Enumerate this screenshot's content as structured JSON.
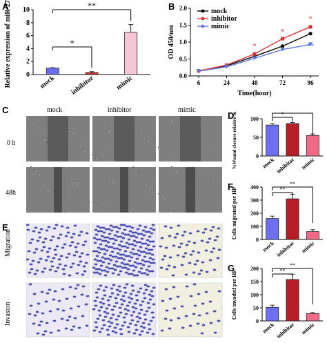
{
  "panels": {
    "A": {
      "label": "A",
      "ylabel": "Relative expression of miR-27b",
      "categories": [
        "mock",
        "inhibitor",
        "mimic"
      ],
      "values": [
        1.0,
        0.3,
        6.5
      ],
      "errors": [
        0.05,
        0.15,
        1.2
      ],
      "colors": [
        "#6b6ff0",
        "#d22a2a",
        "#f7c6d6"
      ],
      "ylim": [
        0,
        10
      ],
      "yticks": [
        0,
        2,
        4,
        6,
        8,
        10
      ],
      "sig": [
        {
          "from": 0,
          "to": 1,
          "text": "*"
        },
        {
          "from": 0,
          "to": 2,
          "text": "**"
        }
      ]
    },
    "B": {
      "label": "B",
      "ylabel": "OD 450/nm",
      "xlabel": "Time(hour)",
      "x": [
        "6",
        "24",
        "48",
        "72",
        "96"
      ],
      "ylim": [
        0,
        2.0
      ],
      "yticks": [
        "0.0",
        "0.5",
        "1.0",
        "1.5",
        "2.0"
      ],
      "series": [
        {
          "name": "mock",
          "color": "#000000",
          "values": [
            0.15,
            0.3,
            0.58,
            0.88,
            1.25
          ]
        },
        {
          "name": "inhibitor",
          "color": "#e03030",
          "values": [
            0.15,
            0.32,
            0.65,
            1.1,
            1.45
          ]
        },
        {
          "name": "mimic",
          "color": "#5a78e0",
          "values": [
            0.14,
            0.27,
            0.52,
            0.78,
            0.93
          ]
        }
      ],
      "stars": [
        {
          "xi": 2,
          "y": 0.82,
          "text": "*"
        },
        {
          "xi": 3,
          "y": 1.25,
          "text": "*"
        },
        {
          "xi": 4,
          "y": 1.62,
          "text": "*"
        },
        {
          "xi": 3,
          "y": 0.68,
          "text": "*"
        },
        {
          "xi": 4,
          "y": 0.82,
          "text": "**"
        }
      ]
    },
    "C": {
      "label": "C",
      "cols": [
        "mock",
        "inhibitor",
        "mimic"
      ],
      "rows": [
        "0 h",
        "48h"
      ]
    },
    "D": {
      "label": "D",
      "ylabel": "%Wound closure relative to 0h",
      "categories": [
        "mock",
        "inhibitor",
        "mimic"
      ],
      "values": [
        83,
        87,
        55
      ],
      "errors": [
        4,
        3,
        4
      ],
      "colors": [
        "#6b6ff0",
        "#b81e2a",
        "#f06a86"
      ],
      "ylim": [
        0,
        100
      ],
      "yticks": [
        0,
        50,
        100
      ],
      "sig": [
        {
          "from": 0,
          "to": 1,
          "text": "*"
        },
        {
          "from": 0,
          "to": 2,
          "text": "**"
        }
      ]
    },
    "E": {
      "label": "E",
      "rows": [
        "Migration",
        "Invasion"
      ]
    },
    "F": {
      "label": "F",
      "ylabel": "Cells migrated per HP",
      "categories": [
        "mock",
        "inhibitor",
        "mimic"
      ],
      "values": [
        160,
        310,
        60
      ],
      "errors": [
        18,
        35,
        15
      ],
      "colors": [
        "#6b6ff0",
        "#b81e2a",
        "#f06a86"
      ],
      "ylim": [
        0,
        400
      ],
      "yticks": [
        0,
        100,
        200,
        300,
        400
      ],
      "sig": [
        {
          "from": 0,
          "to": 1,
          "text": "**"
        },
        {
          "from": 0,
          "to": 2,
          "text": "**"
        }
      ]
    },
    "G": {
      "label": "G",
      "ylabel": "Cells invaded per HP",
      "categories": [
        "mock",
        "inhibitor",
        "mimic"
      ],
      "values": [
        52,
        158,
        28
      ],
      "errors": [
        8,
        20,
        4
      ],
      "colors": [
        "#6b6ff0",
        "#b81e2a",
        "#f06a86"
      ],
      "ylim": [
        0,
        200
      ],
      "yticks": [
        0,
        50,
        100,
        150,
        200
      ],
      "sig": [
        {
          "from": 0,
          "to": 1,
          "text": "**"
        },
        {
          "from": 0,
          "to": 2,
          "text": "**"
        }
      ]
    }
  },
  "chart_data": [
    {
      "type": "bar",
      "categories": [
        "mock",
        "inhibitor",
        "mimic"
      ],
      "values": [
        1.0,
        0.3,
        6.5
      ],
      "ylabel": "Relative expression of miR-27b",
      "ylim": [
        0,
        10
      ]
    },
    {
      "type": "line",
      "x": [
        6,
        24,
        48,
        72,
        96
      ],
      "xlabel": "Time(hour)",
      "ylabel": "OD 450/nm",
      "ylim": [
        0,
        2.0
      ],
      "series": [
        {
          "name": "mock",
          "values": [
            0.15,
            0.3,
            0.58,
            0.88,
            1.25
          ]
        },
        {
          "name": "inhibitor",
          "values": [
            0.15,
            0.32,
            0.65,
            1.1,
            1.45
          ]
        },
        {
          "name": "mimic",
          "values": [
            0.14,
            0.27,
            0.52,
            0.78,
            0.93
          ]
        }
      ],
      "legend": "top-left"
    },
    {
      "type": "bar",
      "categories": [
        "mock",
        "inhibitor",
        "mimic"
      ],
      "values": [
        83,
        87,
        55
      ],
      "ylabel": "%Wound closure relative to 0h",
      "ylim": [
        0,
        100
      ]
    },
    {
      "type": "bar",
      "categories": [
        "mock",
        "inhibitor",
        "mimic"
      ],
      "values": [
        160,
        310,
        60
      ],
      "ylabel": "Cells migrated per HP",
      "ylim": [
        0,
        400
      ]
    },
    {
      "type": "bar",
      "categories": [
        "mock",
        "inhibitor",
        "mimic"
      ],
      "values": [
        52,
        158,
        28
      ],
      "ylabel": "Cells invaded per HP",
      "ylim": [
        0,
        200
      ]
    }
  ]
}
